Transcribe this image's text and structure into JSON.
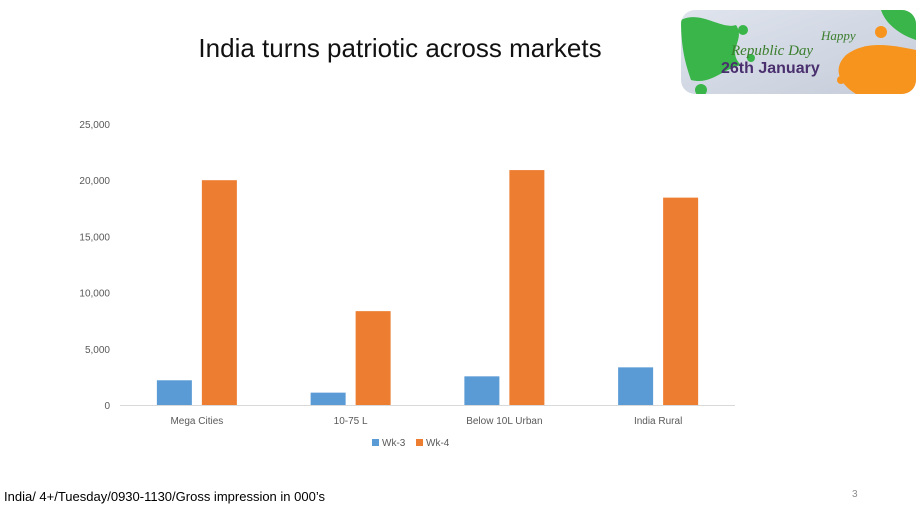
{
  "slide": {
    "title": "India turns patriotic across markets",
    "footnote": "India/ 4+/Tuesday/0930-1130/Gross impression in 000’s",
    "page_number": "3"
  },
  "banner": {
    "line1": "Happy",
    "line2": "Republic Day",
    "line3": "26th January"
  },
  "colors": {
    "wk3": "#5b9bd5",
    "wk4": "#ed7d31",
    "axis": "#d9d9d9",
    "text": "#595959"
  },
  "chart_data": {
    "type": "bar",
    "categories": [
      "Mega Cities",
      "10-75 L",
      "Below 10L Urban",
      "India Rural"
    ],
    "series": [
      {
        "name": "Wk-3",
        "values": [
          2200,
          1100,
          2550,
          3350
        ]
      },
      {
        "name": "Wk-4",
        "values": [
          20000,
          8350,
          20900,
          18450
        ]
      }
    ],
    "ylim": [
      0,
      25000
    ],
    "yticks": [
      {
        "value": 0,
        "label": "0"
      },
      {
        "value": 5000,
        "label": "5,000"
      },
      {
        "value": 10000,
        "label": "10,000"
      },
      {
        "value": 15000,
        "label": "15,000"
      },
      {
        "value": 20000,
        "label": "20,000"
      },
      {
        "value": 25000,
        "label": "25,000"
      }
    ],
    "grid": false,
    "legend": "bottom"
  }
}
